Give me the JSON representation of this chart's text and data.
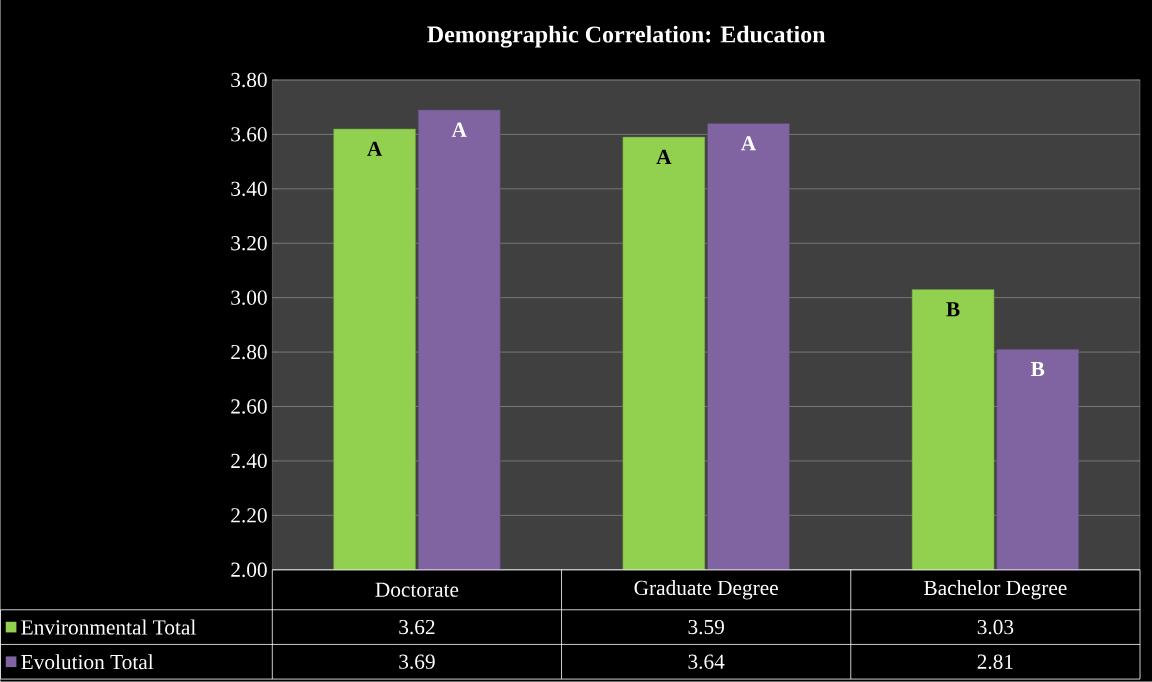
{
  "chart_data": {
    "type": "bar",
    "title": "Demongraphic Correlation: Education",
    "categories": [
      "Doctorate",
      "Graduate Degree",
      "Bachelor Degree"
    ],
    "series": [
      {
        "name": "Environmental Total",
        "color": "#92d050",
        "values": [
          3.62,
          3.59,
          3.03
        ]
      },
      {
        "name": "Evolution Total",
        "color": "#8064a2",
        "values": [
          3.69,
          3.64,
          2.81
        ]
      }
    ],
    "ylim": [
      2.0,
      3.8
    ],
    "yticks": [
      {
        "value": 2.0,
        "label": "2.00"
      },
      {
        "value": 2.2,
        "label": "2.20"
      },
      {
        "value": 2.4,
        "label": "2.40"
      },
      {
        "value": 2.6,
        "label": "2.60"
      },
      {
        "value": 2.8,
        "label": "2.80"
      },
      {
        "value": 3.0,
        "label": "3.00"
      },
      {
        "value": 3.2,
        "label": "3.20"
      },
      {
        "value": 3.4,
        "label": "3.40"
      },
      {
        "value": 3.6,
        "label": "3.60"
      },
      {
        "value": 3.8,
        "label": "3.80"
      }
    ],
    "grid": "y",
    "legend": "bottom left",
    "data_labels": true,
    "annotations": [
      {
        "text": "A",
        "x": "Doctorate",
        "y": 3.62
      },
      {
        "text": "A",
        "x": "Doctorate",
        "y": 3.69
      },
      {
        "text": "A",
        "x": "Graduate Degree",
        "y": 3.59
      },
      {
        "text": "A",
        "x": "Graduate Degree",
        "y": 3.64
      },
      {
        "text": "B",
        "x": "Bachelor Degree",
        "y": 3.03
      },
      {
        "text": "B",
        "x": "Bachelor Degree",
        "y": 2.81
      }
    ]
  }
}
